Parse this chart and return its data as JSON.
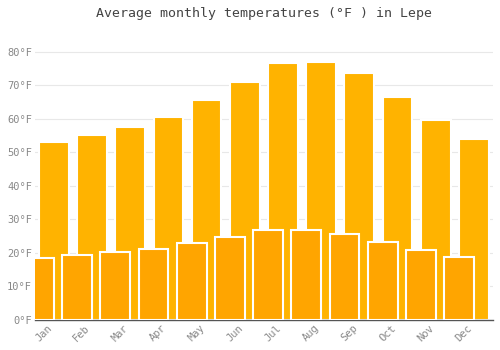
{
  "title": "Average monthly temperatures (°F ) in Lepe",
  "months": [
    "Jan",
    "Feb",
    "Mar",
    "Apr",
    "May",
    "Jun",
    "Jul",
    "Aug",
    "Sep",
    "Oct",
    "Nov",
    "Dec"
  ],
  "values": [
    53,
    55,
    57.5,
    60.5,
    65.5,
    71,
    76.5,
    77,
    73.5,
    66.5,
    59.5,
    54
  ],
  "bar_color_top": "#FFB300",
  "bar_color_bottom": "#FFA500",
  "bar_edge_color": "#FFFFFF",
  "background_color": "#FFFFFF",
  "grid_color": "#E8E8E8",
  "tick_color": "#888888",
  "title_color": "#444444",
  "yticks": [
    0,
    10,
    20,
    30,
    40,
    50,
    60,
    70,
    80
  ],
  "ylim": [
    0,
    87
  ]
}
